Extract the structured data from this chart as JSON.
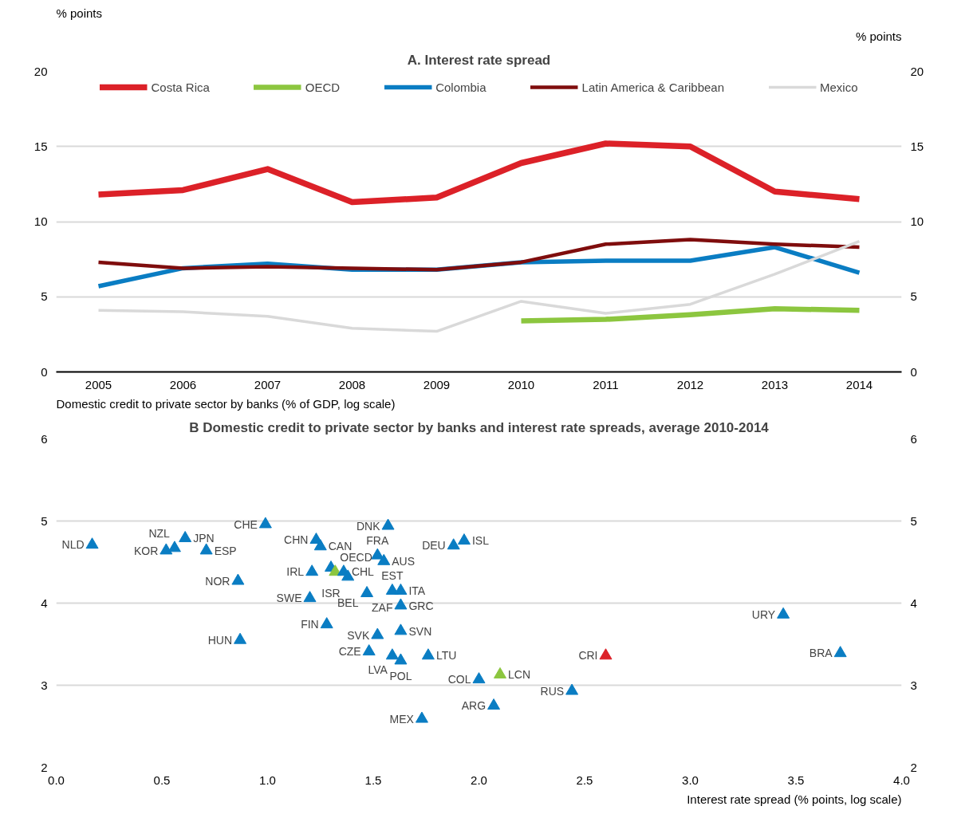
{
  "chart_data": [
    {
      "type": "line",
      "title": "A. Interest rate spread",
      "ylabel": "% points",
      "y2label": "% points",
      "categories": [
        "2005",
        "2006",
        "2007",
        "2008",
        "2009",
        "2010",
        "2011",
        "2012",
        "2013",
        "2014"
      ],
      "series": [
        {
          "name": "Costa Rica",
          "color": "#dc2128",
          "values": [
            11.8,
            12.1,
            13.5,
            11.3,
            11.6,
            13.9,
            15.2,
            15.0,
            12.0,
            11.5
          ]
        },
        {
          "name": "OECD",
          "color": "#8cc63f",
          "values": [
            null,
            null,
            null,
            null,
            null,
            3.4,
            3.5,
            3.8,
            4.2,
            4.1
          ]
        },
        {
          "name": "Colombia",
          "color": "#0a7dc3",
          "values": [
            5.7,
            6.9,
            7.2,
            6.8,
            6.8,
            7.3,
            7.4,
            7.4,
            8.3,
            6.6
          ]
        },
        {
          "name": "Latin America & Caribbean",
          "color": "#7f0d0d",
          "values": [
            7.3,
            6.9,
            7.0,
            6.9,
            6.8,
            7.3,
            8.5,
            8.8,
            8.5,
            8.3
          ]
        },
        {
          "name": "Mexico",
          "color": "#d9d9d9",
          "values": [
            4.1,
            4.0,
            3.7,
            2.9,
            2.7,
            4.7,
            3.9,
            4.5,
            6.5,
            8.7
          ]
        }
      ],
      "ylim": [
        0,
        20
      ],
      "yticks": [
        0,
        5,
        10,
        15,
        20
      ],
      "y2lim": [
        0,
        20
      ],
      "y2ticks": [
        0,
        5,
        10,
        15,
        20
      ],
      "grid": "y",
      "legend": "top",
      "line_style": "solid",
      "marker": "none"
    },
    {
      "type": "scatter",
      "title": "B Domestic credit to private sector by banks and interest rate spreads, average 2010-2014",
      "ylabel": "Domestic credit to private sector by banks  (% of GDP, log scale)",
      "xlabel": "Interest rate spread (% points, log scale)",
      "series": [
        {
          "x": [
            0.17,
            0.52,
            0.56,
            0.61,
            0.71,
            0.99,
            0.86,
            0.87,
            1.23,
            1.25,
            1.21,
            1.3,
            1.32,
            1.36,
            1.38,
            1.52,
            1.55,
            1.57,
            1.88,
            1.93,
            1.2,
            1.47,
            1.59,
            1.63,
            1.63,
            1.28,
            1.52,
            1.63,
            1.48,
            1.59,
            1.63,
            1.76,
            2.0,
            2.1,
            2.07,
            1.73,
            2.44,
            2.6,
            3.44,
            3.71
          ],
          "values": [
            4.71,
            4.64,
            4.67,
            4.79,
            4.64,
            4.96,
            4.27,
            3.55,
            4.77,
            4.69,
            4.38,
            4.43,
            4.38,
            4.38,
            4.32,
            4.58,
            4.51,
            4.94,
            4.7,
            4.76,
            4.06,
            4.12,
            4.15,
            4.15,
            3.97,
            3.74,
            3.61,
            3.66,
            3.41,
            3.36,
            3.3,
            3.36,
            3.07,
            3.13,
            2.75,
            2.59,
            2.93,
            3.36,
            3.86,
            3.39
          ],
          "colors": [
            "#0a7dc3",
            "#0a7dc3",
            "#0a7dc3",
            "#0a7dc3",
            "#0a7dc3",
            "#0a7dc3",
            "#0a7dc3",
            "#0a7dc3",
            "#0a7dc3",
            "#0a7dc3",
            "#0a7dc3",
            "#0a7dc3",
            "#8cc63f",
            "#0a7dc3",
            "#0a7dc3",
            "#0a7dc3",
            "#0a7dc3",
            "#0a7dc3",
            "#0a7dc3",
            "#0a7dc3",
            "#0a7dc3",
            "#0a7dc3",
            "#0a7dc3",
            "#0a7dc3",
            "#0a7dc3",
            "#0a7dc3",
            "#0a7dc3",
            "#0a7dc3",
            "#0a7dc3",
            "#0a7dc3",
            "#0a7dc3",
            "#0a7dc3",
            "#0a7dc3",
            "#8cc63f",
            "#0a7dc3",
            "#0a7dc3",
            "#0a7dc3",
            "#dc2128",
            "#0a7dc3",
            "#0a7dc3"
          ]
        }
      ],
      "annotations": [
        {
          "text": "NLD",
          "x": 0.17,
          "y": 4.71
        },
        {
          "text": "KOR",
          "x": 0.52,
          "y": 4.64
        },
        {
          "text": "NZL",
          "x": 0.56,
          "y": 4.67
        },
        {
          "text": "JPN",
          "x": 0.61,
          "y": 4.79
        },
        {
          "text": "ESP",
          "x": 0.71,
          "y": 4.64
        },
        {
          "text": "CHE",
          "x": 0.99,
          "y": 4.96
        },
        {
          "text": "NOR",
          "x": 0.86,
          "y": 4.27
        },
        {
          "text": "HUN",
          "x": 0.87,
          "y": 3.55
        },
        {
          "text": "CHN",
          "x": 1.23,
          "y": 4.77
        },
        {
          "text": "CAN",
          "x": 1.25,
          "y": 4.69
        },
        {
          "text": "IRL",
          "x": 1.21,
          "y": 4.38
        },
        {
          "text": "ISR",
          "x": 1.3,
          "y": 4.43
        },
        {
          "text": "OECD",
          "x": 1.32,
          "y": 4.38
        },
        {
          "text": "CHL",
          "x": 1.36,
          "y": 4.38
        },
        {
          "text": "BEL",
          "x": 1.38,
          "y": 4.32
        },
        {
          "text": "FRA",
          "x": 1.52,
          "y": 4.58
        },
        {
          "text": "AUS",
          "x": 1.55,
          "y": 4.51
        },
        {
          "text": "DNK",
          "x": 1.57,
          "y": 4.94
        },
        {
          "text": "DEU",
          "x": 1.88,
          "y": 4.7
        },
        {
          "text": "ISL",
          "x": 1.93,
          "y": 4.76
        },
        {
          "text": "SWE",
          "x": 1.2,
          "y": 4.06
        },
        {
          "text": "ZAF",
          "x": 1.47,
          "y": 4.12
        },
        {
          "text": "EST",
          "x": 1.59,
          "y": 4.15
        },
        {
          "text": "ITA",
          "x": 1.63,
          "y": 4.15
        },
        {
          "text": "GRC",
          "x": 1.63,
          "y": 3.97
        },
        {
          "text": "FIN",
          "x": 1.28,
          "y": 3.74
        },
        {
          "text": "SVK",
          "x": 1.52,
          "y": 3.61
        },
        {
          "text": "SVN",
          "x": 1.63,
          "y": 3.66
        },
        {
          "text": "CZE",
          "x": 1.48,
          "y": 3.41
        },
        {
          "text": "LVA",
          "x": 1.59,
          "y": 3.36
        },
        {
          "text": "POL",
          "x": 1.63,
          "y": 3.3
        },
        {
          "text": "LTU",
          "x": 1.76,
          "y": 3.36
        },
        {
          "text": "COL",
          "x": 2.0,
          "y": 3.07
        },
        {
          "text": "LCN",
          "x": 2.1,
          "y": 3.13
        },
        {
          "text": "ARG",
          "x": 2.07,
          "y": 2.75
        },
        {
          "text": "MEX",
          "x": 1.73,
          "y": 2.59
        },
        {
          "text": "RUS",
          "x": 2.44,
          "y": 2.93
        },
        {
          "text": "CRI",
          "x": 2.6,
          "y": 3.36
        },
        {
          "text": "URY",
          "x": 3.44,
          "y": 3.86
        },
        {
          "text": "BRA",
          "x": 3.71,
          "y": 3.39
        }
      ],
      "xlim": [
        0,
        4
      ],
      "xticks": [
        {
          "value": 0,
          "label": "0.0"
        },
        {
          "value": 0.5,
          "label": "0.5"
        },
        {
          "value": 1,
          "label": "1.0"
        },
        {
          "value": 1.5,
          "label": "1.5"
        },
        {
          "value": 2,
          "label": "2.0"
        },
        {
          "value": 2.5,
          "label": "2.5"
        },
        {
          "value": 3,
          "label": "3.0"
        },
        {
          "value": 3.5,
          "label": "3.5"
        },
        {
          "value": 4,
          "label": "4.0"
        }
      ],
      "ylim": [
        2,
        6
      ],
      "yticks": [
        2,
        3,
        4,
        5,
        6
      ],
      "y2lim": [
        2,
        6
      ],
      "y2ticks": [
        2,
        3,
        4,
        5,
        6
      ],
      "grid": "y",
      "marker": "triangle"
    }
  ]
}
